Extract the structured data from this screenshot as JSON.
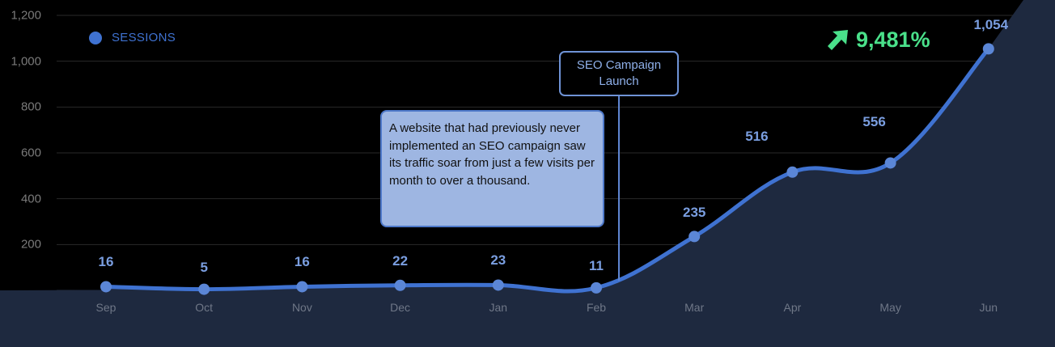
{
  "chart_data": {
    "type": "line",
    "title": "",
    "xlabel": "",
    "ylabel": "",
    "ylim": [
      0,
      1200
    ],
    "yticks": [
      "1,200",
      "1,000",
      "800",
      "600",
      "400",
      "200"
    ],
    "grid": true,
    "legend_position": "top-left",
    "categories": [
      "Sep",
      "Oct",
      "Nov",
      "Dec",
      "Jan",
      "Feb",
      "Mar",
      "Apr",
      "May",
      "Jun"
    ],
    "series": [
      {
        "name": "SESSIONS",
        "color": "#3f72d1",
        "values": [
          16,
          5,
          16,
          22,
          23,
          11,
          235,
          516,
          556,
          1054
        ],
        "labels": [
          "16",
          "5",
          "16",
          "22",
          "23",
          "11",
          "235",
          "516",
          "556",
          "1,054"
        ]
      }
    ],
    "annotations": [
      {
        "type": "event-marker",
        "text": "SEO Campaign Launch",
        "position": "between Feb and Mar"
      },
      {
        "type": "callout",
        "text": "A website that had previously never implemented an SEO campaign saw its traffic soar from just a few visits per month to over a thousand."
      },
      {
        "type": "kpi",
        "text": "9,481%",
        "icon": "arrow-up-right-icon",
        "color": "#4ae08a"
      }
    ]
  },
  "legend": {
    "label": "SESSIONS",
    "color": "#3f72d1"
  },
  "event": {
    "line1": "SEO Campaign",
    "line2": "Launch"
  },
  "callout": {
    "text": "A website that had previously never implemented an SEO campaign saw its traffic soar from just a few visits per month to over a thousand."
  },
  "growth": {
    "value": "9,481%",
    "icon": "arrow-up-right-icon",
    "color": "#4ae08a"
  },
  "colors": {
    "background": "#000000",
    "area": "#1e293f",
    "line": "#3f72d1",
    "point": "#5b86d6",
    "grid": "#2a2a2a"
  }
}
